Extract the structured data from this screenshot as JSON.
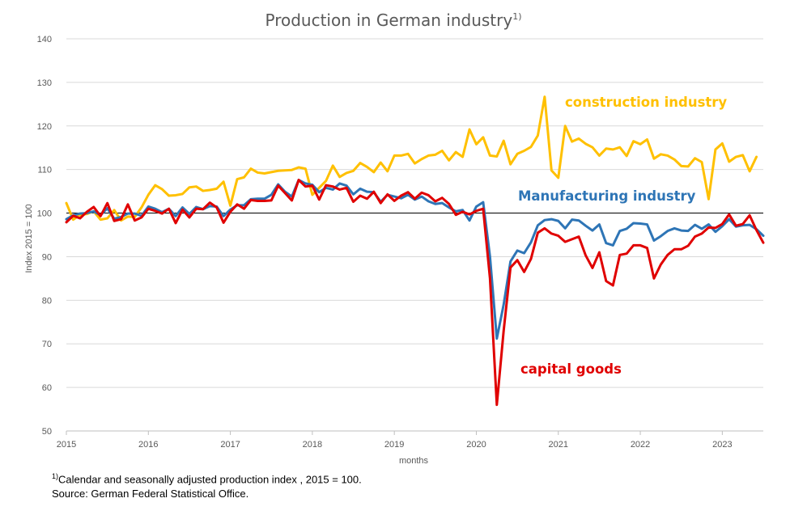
{
  "chart_data": {
    "type": "line",
    "title": "Production in German industry",
    "title_superscript": "1)",
    "xlabel": "months",
    "ylabel": "Index 2015 = 100",
    "ylim": [
      50,
      140
    ],
    "yticks": [
      50,
      60,
      70,
      80,
      90,
      100,
      110,
      120,
      130,
      140
    ],
    "xlim": [
      "2015-01",
      "2023-07"
    ],
    "xticks": [
      "2015",
      "2016",
      "2017",
      "2018",
      "2019",
      "2020",
      "2021",
      "2022",
      "2023"
    ],
    "reference_line": 100,
    "grid": "horizontal",
    "x_start": "2015-01",
    "series": [
      {
        "name": "construction industry",
        "color": "#FFC000",
        "values": [
          102.3,
          98.5,
          99.6,
          99.8,
          100.4,
          98.5,
          98.8,
          100.7,
          98.3,
          99.2,
          99.1,
          101.3,
          104.2,
          106.4,
          105.5,
          104.0,
          104.1,
          104.4,
          105.9,
          106.1,
          105.1,
          105.3,
          105.6,
          107.2,
          101.7,
          107.8,
          108.2,
          110.2,
          109.3,
          109.1,
          109.4,
          109.7,
          109.8,
          109.9,
          110.5,
          110.2,
          104.2,
          105.8,
          107.4,
          110.9,
          108.3,
          109.2,
          109.7,
          111.5,
          110.6,
          109.4,
          111.6,
          109.6,
          113.2,
          113.2,
          113.6,
          111.4,
          112.4,
          113.2,
          113.4,
          114.3,
          112.1,
          114.0,
          112.9,
          119.2,
          115.8,
          117.4,
          113.2,
          113.0,
          116.6,
          111.2,
          113.6,
          114.3,
          115.2,
          117.8,
          126.7,
          109.8,
          108.1,
          120.0,
          116.4,
          117.1,
          115.9,
          115.1,
          113.2,
          114.8,
          114.6,
          115.1,
          113.1,
          116.5,
          115.8,
          116.9,
          112.5,
          113.5,
          113.2,
          112.3,
          110.8,
          110.7,
          112.6,
          111.7,
          103.2,
          114.6,
          116.0,
          111.8,
          112.9,
          113.3,
          109.6,
          112.9
        ]
      },
      {
        "name": "Manufacturing industry",
        "color": "#2E75B6",
        "values": [
          98.6,
          99.5,
          99.9,
          100.0,
          100.4,
          99.5,
          101.1,
          98.7,
          99.1,
          99.9,
          99.9,
          99.4,
          101.5,
          101.0,
          100.2,
          101.0,
          99.3,
          101.3,
          99.8,
          101.4,
          100.9,
          101.6,
          101.5,
          99.3,
          100.8,
          101.8,
          101.8,
          103.2,
          103.3,
          103.3,
          104.2,
          106.6,
          104.9,
          103.8,
          107.6,
          106.8,
          106.5,
          104.8,
          105.8,
          105.4,
          106.8,
          106.3,
          104.3,
          105.6,
          104.9,
          104.8,
          102.6,
          104.2,
          103.8,
          103.4,
          104.2,
          103.1,
          103.8,
          102.7,
          102.1,
          102.3,
          101.3,
          100.4,
          100.7,
          98.3,
          101.5,
          102.5,
          90.0,
          71.2,
          79.0,
          88.9,
          91.4,
          90.8,
          93.3,
          97.2,
          98.4,
          98.6,
          98.2,
          96.5,
          98.5,
          98.3,
          97.1,
          96.0,
          97.4,
          93.1,
          92.6,
          95.9,
          96.4,
          97.7,
          97.6,
          97.4,
          93.7,
          94.7,
          95.9,
          96.5,
          96.0,
          95.9,
          97.3,
          96.4,
          97.4,
          95.7,
          97.0,
          98.6,
          96.9,
          97.2,
          97.3,
          96.3,
          94.8
        ]
      },
      {
        "name": "capital goods",
        "color": "#E00000",
        "values": [
          97.9,
          99.4,
          98.8,
          100.3,
          101.4,
          99.3,
          102.3,
          98.2,
          98.6,
          102.0,
          98.3,
          99.0,
          101.0,
          100.5,
          99.9,
          101.0,
          97.7,
          100.8,
          99.0,
          101.0,
          100.9,
          102.4,
          101.3,
          97.8,
          100.3,
          102.0,
          101.0,
          103.0,
          102.8,
          102.8,
          102.9,
          106.3,
          104.6,
          102.9,
          107.6,
          106.1,
          106.3,
          103.1,
          106.4,
          106.1,
          105.4,
          105.8,
          102.6,
          104.0,
          103.3,
          104.9,
          102.3,
          104.3,
          102.8,
          104.0,
          104.8,
          103.3,
          104.7,
          104.1,
          102.7,
          103.5,
          102.1,
          99.6,
          100.3,
          99.7,
          100.5,
          101.0,
          85.0,
          56.0,
          73.0,
          87.5,
          89.2,
          86.5,
          89.5,
          95.5,
          96.5,
          95.3,
          94.8,
          93.4,
          94.0,
          94.6,
          90.3,
          87.4,
          91.0,
          84.4,
          83.4,
          90.4,
          90.7,
          92.6,
          92.6,
          92.0,
          85.0,
          88.2,
          90.4,
          91.7,
          91.7,
          92.5,
          94.6,
          95.3,
          96.7,
          96.6,
          97.5,
          99.7,
          97.1,
          97.5,
          99.5,
          96.1,
          93.2
        ]
      }
    ],
    "annotations": [
      {
        "text": "construction industry",
        "series": "construction industry"
      },
      {
        "text": "Manufacturing industry",
        "series": "Manufacturing industry"
      },
      {
        "text": "capital goods",
        "series": "capital goods"
      }
    ]
  },
  "footnotes": {
    "line1_marker": "1)",
    "line1_text": "Calendar and seasonally adjusted production index , 2015 = 100.",
    "line2_text": "Source: German Federal Statistical Office."
  }
}
